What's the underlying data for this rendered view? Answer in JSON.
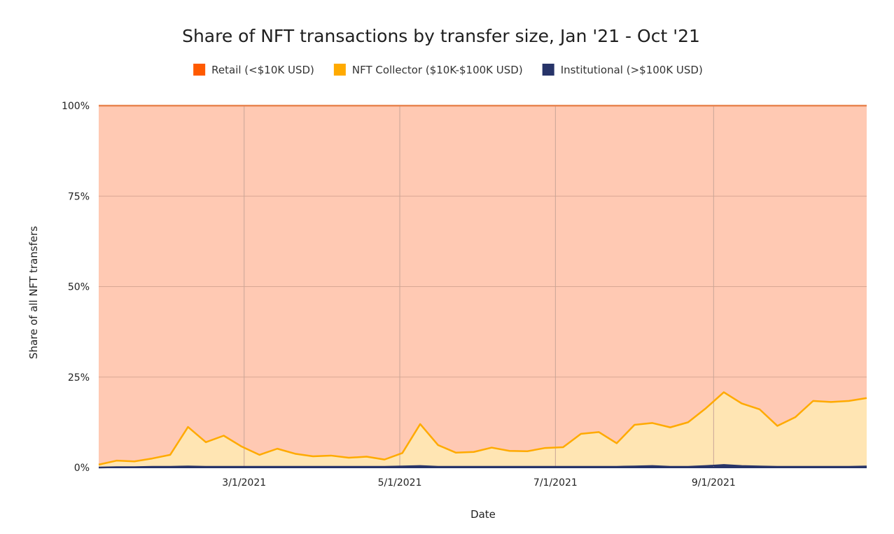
{
  "chart_data": {
    "type": "area",
    "stacked": "percent",
    "title": "Share of NFT transactions by transfer size, Jan '21 - Oct '21",
    "xlabel": "Date",
    "ylabel": "Share of all NFT transfers",
    "ylim": [
      0,
      100
    ],
    "y_ticks": [
      "0%",
      "25%",
      "50%",
      "75%",
      "100%"
    ],
    "y_tick_values": [
      0,
      25,
      50,
      75,
      100
    ],
    "x_ticks": [
      "3/1/2021",
      "5/1/2021",
      "7/1/2021",
      "9/1/2021"
    ],
    "x_tick_dates": [
      "2021-03-01",
      "2021-05-01",
      "2021-07-01",
      "2021-09-01"
    ],
    "grid": true,
    "legend_position": "top",
    "x": [
      "2021-01-03",
      "2021-01-10",
      "2021-01-17",
      "2021-01-24",
      "2021-01-31",
      "2021-02-07",
      "2021-02-14",
      "2021-02-21",
      "2021-02-28",
      "2021-03-07",
      "2021-03-14",
      "2021-03-21",
      "2021-03-28",
      "2021-04-04",
      "2021-04-11",
      "2021-04-18",
      "2021-04-25",
      "2021-05-02",
      "2021-05-09",
      "2021-05-16",
      "2021-05-23",
      "2021-05-30",
      "2021-06-06",
      "2021-06-13",
      "2021-06-20",
      "2021-06-27",
      "2021-07-04",
      "2021-07-11",
      "2021-07-18",
      "2021-07-25",
      "2021-08-01",
      "2021-08-08",
      "2021-08-15",
      "2021-08-22",
      "2021-08-29",
      "2021-09-05",
      "2021-09-12",
      "2021-09-19",
      "2021-09-26",
      "2021-10-03",
      "2021-10-10",
      "2021-10-17",
      "2021-10-24",
      "2021-10-31"
    ],
    "series": [
      {
        "name": "Retail (<$10K USD)",
        "color": "#FF5A00",
        "fill": "#FFC9B3",
        "values": [
          99.2,
          98.1,
          98.3,
          97.5,
          96.5,
          88.8,
          93.0,
          91.2,
          94.2,
          96.5,
          94.8,
          96.2,
          96.9,
          96.7,
          97.3,
          97.0,
          97.8,
          96.0,
          88.0,
          93.8,
          95.9,
          95.7,
          94.5,
          95.4,
          95.5,
          94.6,
          94.4,
          90.7,
          90.2,
          93.3,
          88.2,
          87.7,
          88.9,
          87.5,
          83.6,
          79.2,
          82.3,
          83.9,
          88.5,
          86.1,
          81.6,
          81.9,
          81.6,
          80.8
        ]
      },
      {
        "name": "NFT Collector ($10K-$100K USD)",
        "color": "#FFAA00",
        "fill": "#FFE5B3",
        "values": [
          0.8,
          1.8,
          1.6,
          2.3,
          3.3,
          10.9,
          6.8,
          8.6,
          5.6,
          3.3,
          5.0,
          3.6,
          2.9,
          3.1,
          2.5,
          2.8,
          2.0,
          3.7,
          11.6,
          6.0,
          3.9,
          4.1,
          5.3,
          4.4,
          4.3,
          5.2,
          5.4,
          9.1,
          9.6,
          6.5,
          11.5,
          11.9,
          10.9,
          12.3,
          16.0,
          20.1,
          17.3,
          15.8,
          11.3,
          13.7,
          18.2,
          17.9,
          18.2,
          18.9
        ]
      },
      {
        "name": "Institutional (>$100K USD)",
        "color": "#273469",
        "fill": "#273469",
        "values": [
          0.0,
          0.1,
          0.1,
          0.2,
          0.2,
          0.3,
          0.2,
          0.2,
          0.2,
          0.2,
          0.2,
          0.2,
          0.2,
          0.2,
          0.2,
          0.2,
          0.2,
          0.3,
          0.4,
          0.2,
          0.2,
          0.2,
          0.2,
          0.2,
          0.2,
          0.2,
          0.2,
          0.2,
          0.2,
          0.2,
          0.3,
          0.4,
          0.2,
          0.2,
          0.4,
          0.7,
          0.4,
          0.3,
          0.2,
          0.2,
          0.2,
          0.2,
          0.2,
          0.3
        ]
      }
    ]
  }
}
